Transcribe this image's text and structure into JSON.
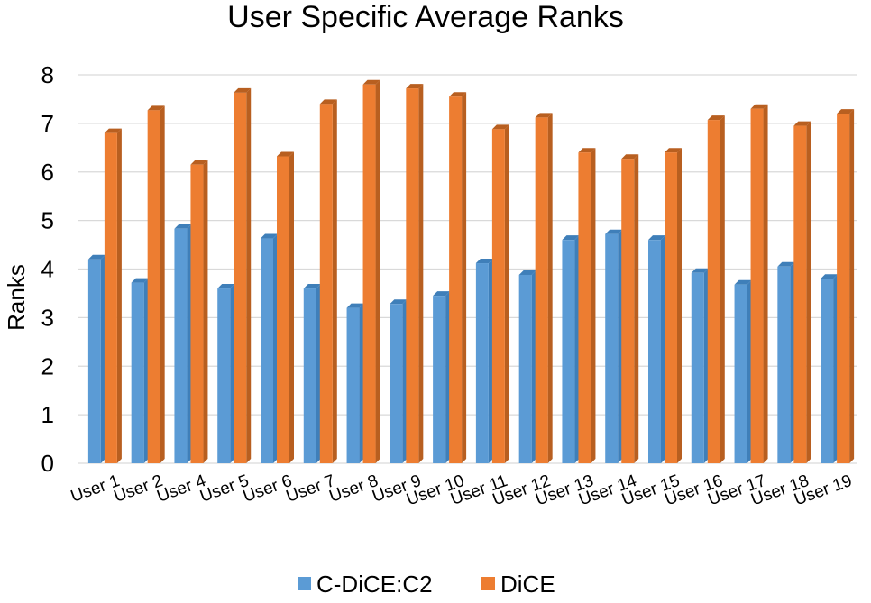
{
  "chart_data": {
    "type": "bar",
    "title": "User Specific Average Ranks",
    "xlabel": "",
    "ylabel": "Ranks",
    "ylim": [
      0,
      8
    ],
    "yticks": [
      0,
      1,
      2,
      3,
      4,
      5,
      6,
      7,
      8
    ],
    "grid": true,
    "legend_position": "bottom",
    "categories": [
      "User 1",
      "User 2",
      "User 4",
      "User 5",
      "User 6",
      "User 7",
      "User 8",
      "User 9",
      "User 10",
      "User 11",
      "User 12",
      "User 13",
      "User 14",
      "User 15",
      "User 16",
      "User 17",
      "User 18",
      "User 19"
    ],
    "series": [
      {
        "name": "C-DiCE:C2",
        "color": "#5b9bd5",
        "shade": "#3f7fb9",
        "values": [
          4.2,
          3.72,
          4.83,
          3.6,
          4.63,
          3.6,
          3.2,
          3.28,
          3.45,
          4.12,
          3.88,
          4.6,
          4.72,
          4.6,
          3.92,
          3.68,
          4.05,
          3.8
        ]
      },
      {
        "name": "DiCE",
        "color": "#ed7d31",
        "shade": "#b85f20",
        "values": [
          6.8,
          7.27,
          6.15,
          7.63,
          6.32,
          7.4,
          7.8,
          7.72,
          7.55,
          6.88,
          7.12,
          6.4,
          6.27,
          6.4,
          7.07,
          7.3,
          6.95,
          7.2
        ]
      }
    ]
  }
}
